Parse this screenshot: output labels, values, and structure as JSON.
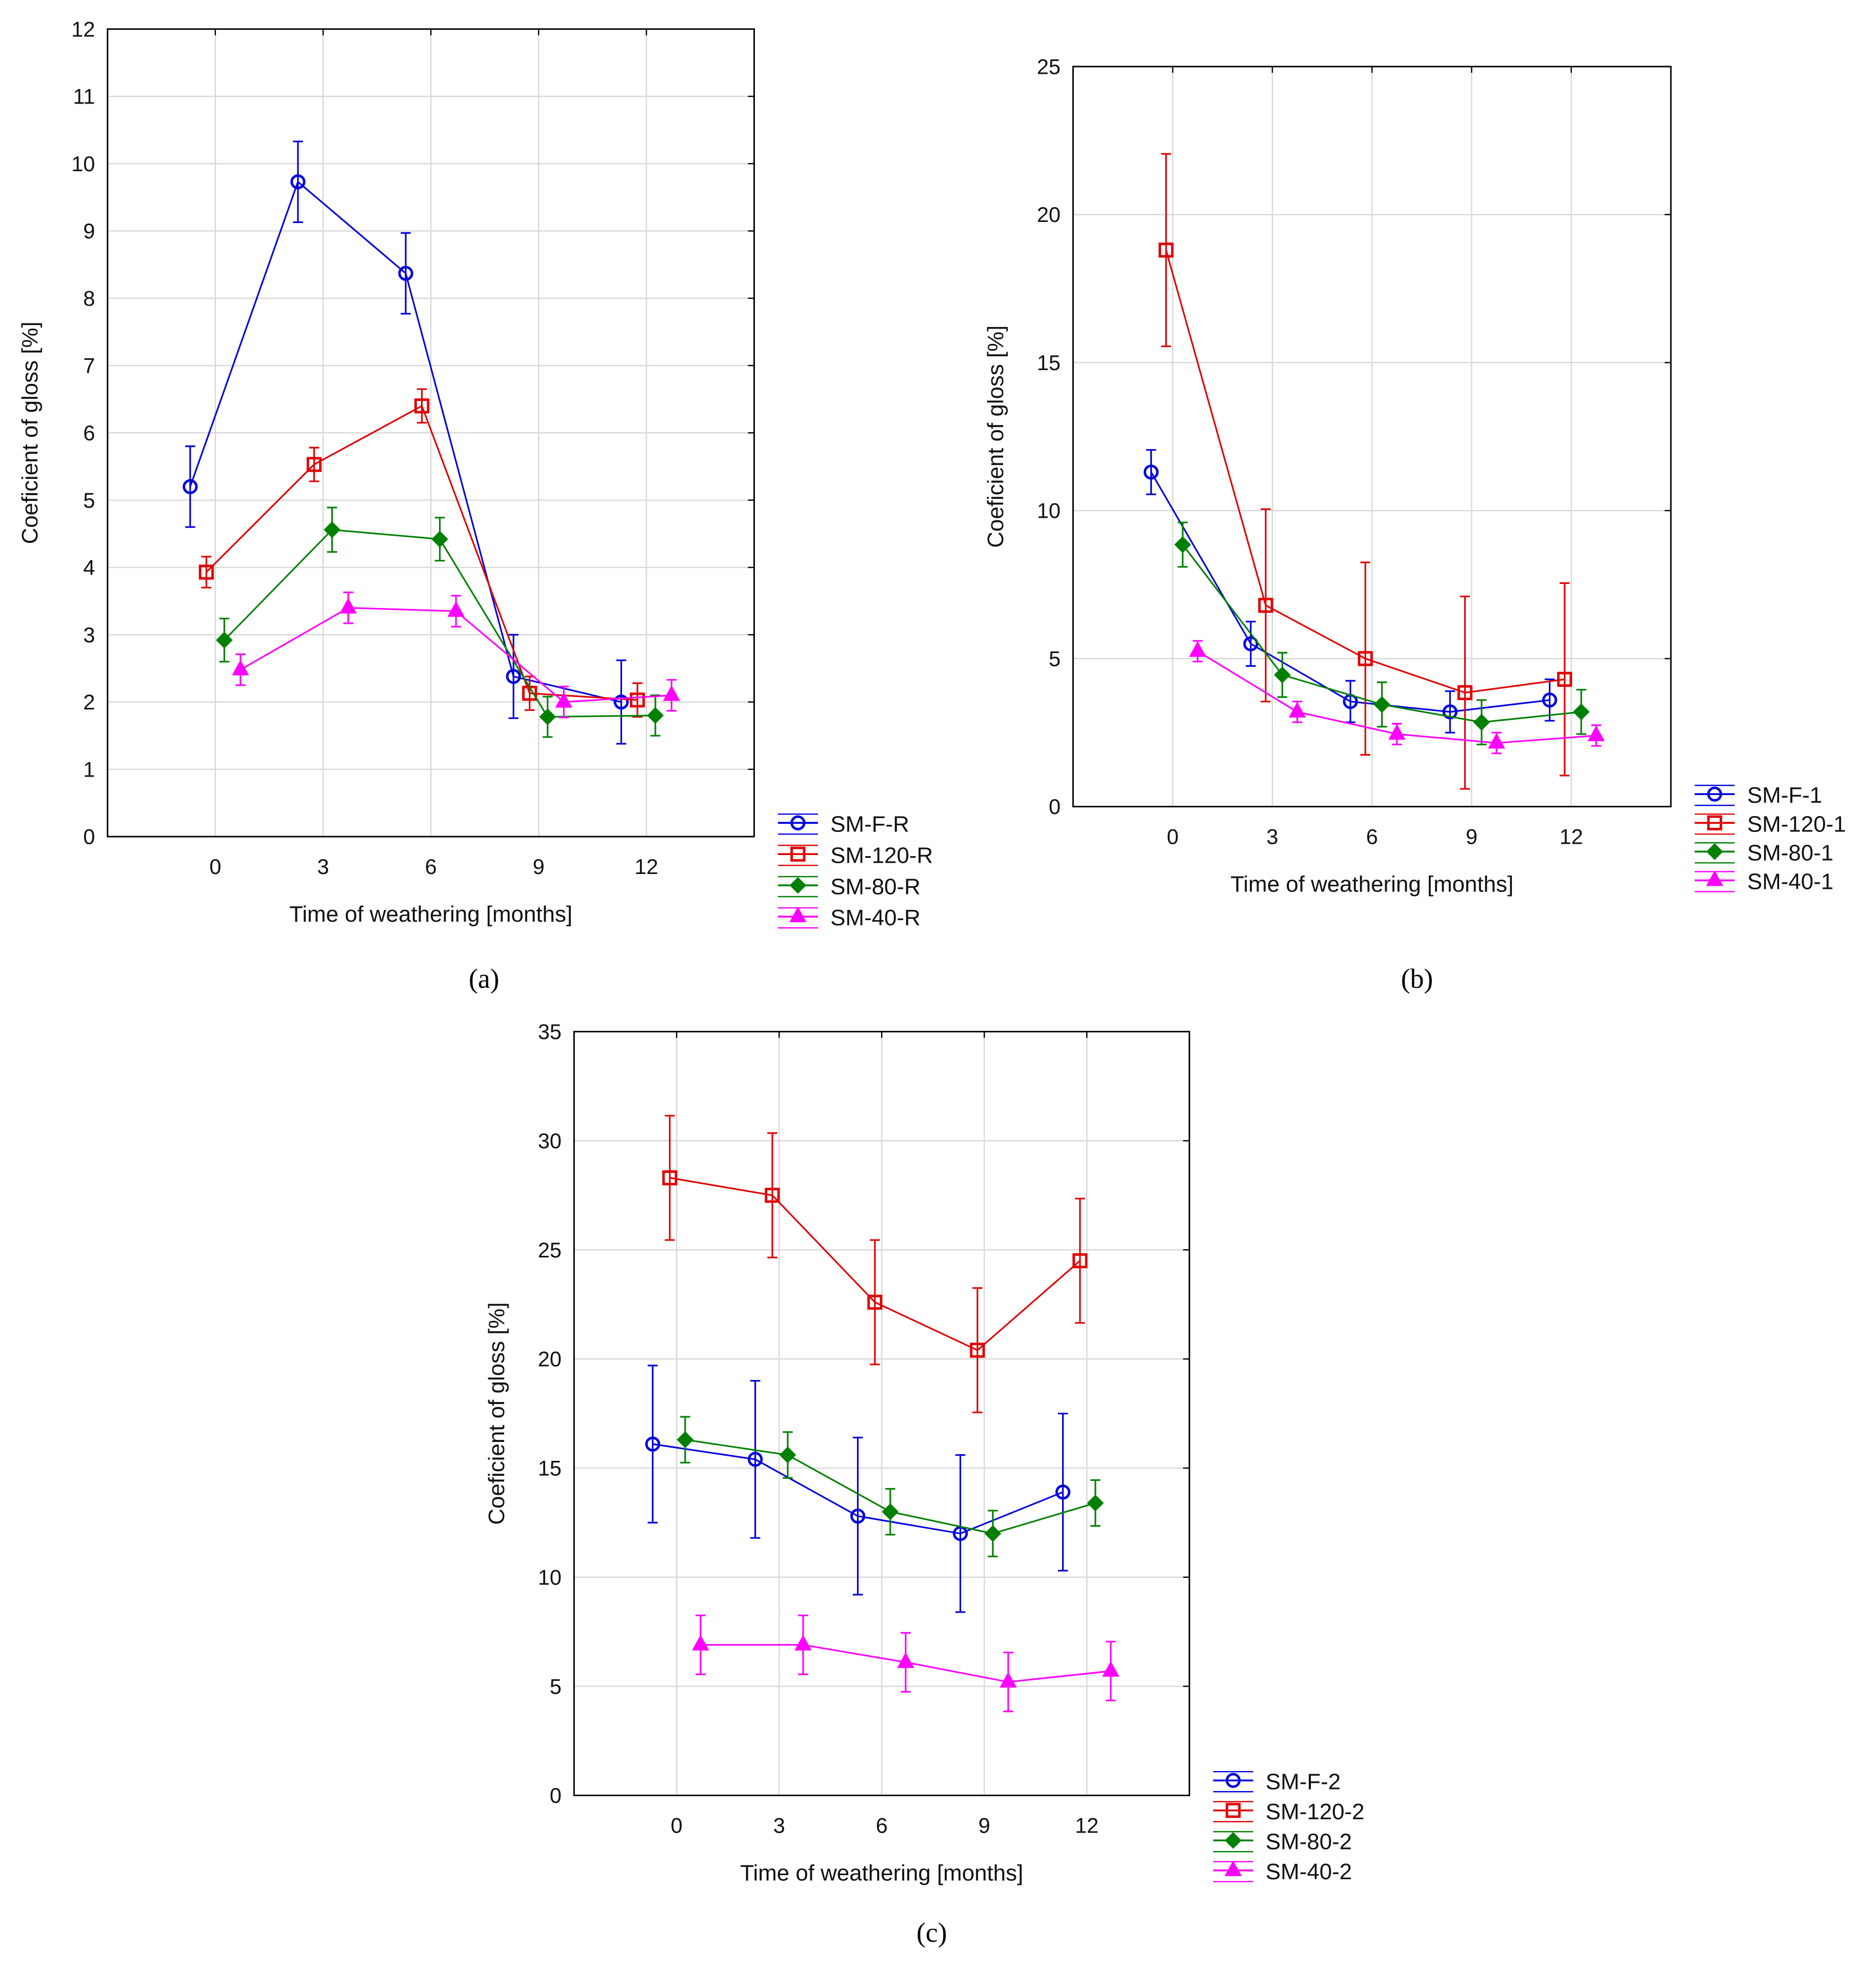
{
  "colors": {
    "F": "#0000e0",
    "120": "#e00000",
    "80": "#008000",
    "40": "#ff00ff",
    "grid": "#d8d8d8"
  },
  "chart_data": [
    {
      "type": "line",
      "panel_label": "(a)",
      "xlabel": "Time of weathering [months]",
      "ylabel": "Coeficient of gloss [%]",
      "xlim": [
        -3,
        15
      ],
      "ylim": [
        0,
        12
      ],
      "yticks": [
        0,
        1,
        2,
        3,
        4,
        5,
        6,
        7,
        8,
        9,
        10,
        11,
        12
      ],
      "xticks": [
        0,
        3,
        6,
        9,
        12
      ],
      "grid": true,
      "legend": "bottom-right-outside",
      "x": [
        0,
        3,
        6,
        9,
        12
      ],
      "series": [
        {
          "name": "SM-F-R",
          "key": "F",
          "marker": "circle",
          "offset": -0.7,
          "values": [
            5.2,
            9.73,
            8.37,
            2.38,
            2.0
          ],
          "errors": [
            0.6,
            0.6,
            0.6,
            0.62,
            0.62
          ]
        },
        {
          "name": "SM-120-R",
          "key": "120",
          "marker": "square",
          "offset": -0.25,
          "values": [
            3.93,
            5.53,
            6.4,
            2.13,
            2.03
          ],
          "errors": [
            0.23,
            0.25,
            0.25,
            0.25,
            0.25
          ]
        },
        {
          "name": "SM-80-R",
          "key": "80",
          "marker": "diamond",
          "offset": 0.25,
          "values": [
            2.92,
            4.56,
            4.42,
            1.78,
            1.8
          ],
          "errors": [
            0.32,
            0.33,
            0.32,
            0.3,
            0.3
          ]
        },
        {
          "name": "SM-40-R",
          "key": "40",
          "marker": "triangle",
          "offset": 0.7,
          "values": [
            2.48,
            3.4,
            3.35,
            2.0,
            2.1
          ],
          "errors": [
            0.23,
            0.23,
            0.23,
            0.23,
            0.23
          ]
        }
      ]
    },
    {
      "type": "line",
      "panel_label": "(b)",
      "xlabel": "Time of weathering [months]",
      "ylabel": "Coeficient of gloss [%]",
      "xlim": [
        -3,
        15
      ],
      "ylim": [
        0,
        25
      ],
      "yticks": [
        0,
        5,
        10,
        15,
        20,
        25
      ],
      "xticks": [
        0,
        3,
        6,
        9,
        12
      ],
      "grid": true,
      "legend": "bottom-right-outside",
      "x": [
        0,
        3,
        6,
        9,
        12
      ],
      "series": [
        {
          "name": "SM-F-1",
          "key": "F",
          "marker": "circle",
          "offset": -0.65,
          "values": [
            11.3,
            5.5,
            3.55,
            3.2,
            3.6
          ],
          "errors": [
            0.75,
            0.75,
            0.7,
            0.7,
            0.7
          ]
        },
        {
          "name": "SM-120-1",
          "key": "120",
          "marker": "square",
          "offset": -0.2,
          "values": [
            18.8,
            6.8,
            5.0,
            3.85,
            4.3
          ],
          "errors": [
            3.25,
            3.25,
            3.25,
            3.25,
            3.25
          ]
        },
        {
          "name": "SM-80-1",
          "key": "80",
          "marker": "diamond",
          "offset": 0.3,
          "values": [
            8.85,
            4.45,
            3.45,
            2.85,
            3.2
          ],
          "errors": [
            0.75,
            0.75,
            0.75,
            0.75,
            0.75
          ]
        },
        {
          "name": "SM-40-1",
          "key": "40",
          "marker": "triangle",
          "offset": 0.75,
          "values": [
            5.25,
            3.2,
            2.45,
            2.15,
            2.4
          ],
          "errors": [
            0.35,
            0.35,
            0.35,
            0.35,
            0.35
          ]
        }
      ]
    },
    {
      "type": "line",
      "panel_label": "(c)",
      "xlabel": "Time of weathering [months]",
      "ylabel": "Coeficient of gloss [%]",
      "xlim": [
        -3,
        15
      ],
      "ylim": [
        0,
        35
      ],
      "yticks": [
        0,
        5,
        10,
        15,
        20,
        25,
        30,
        35
      ],
      "xticks": [
        0,
        3,
        6,
        9,
        12
      ],
      "grid": true,
      "legend": "bottom-right-outside",
      "x": [
        0,
        3,
        6,
        9,
        12
      ],
      "series": [
        {
          "name": "SM-F-2",
          "key": "F",
          "marker": "circle",
          "offset": -0.7,
          "values": [
            16.1,
            15.4,
            12.8,
            12.0,
            13.9
          ],
          "errors": [
            3.6,
            3.6,
            3.6,
            3.6,
            3.6
          ]
        },
        {
          "name": "SM-120-2",
          "key": "120",
          "marker": "square",
          "offset": -0.2,
          "values": [
            28.3,
            27.5,
            22.6,
            20.4,
            24.5
          ],
          "errors": [
            2.85,
            2.85,
            2.85,
            2.85,
            2.85
          ]
        },
        {
          "name": "SM-80-2",
          "key": "80",
          "marker": "diamond",
          "offset": 0.25,
          "values": [
            16.3,
            15.6,
            13.0,
            12.0,
            13.4
          ],
          "errors": [
            1.05,
            1.05,
            1.05,
            1.05,
            1.05
          ]
        },
        {
          "name": "SM-40-2",
          "key": "40",
          "marker": "triangle",
          "offset": 0.7,
          "values": [
            6.9,
            6.9,
            6.1,
            5.2,
            5.7
          ],
          "errors": [
            1.35,
            1.35,
            1.35,
            1.35,
            1.35
          ]
        }
      ]
    }
  ]
}
